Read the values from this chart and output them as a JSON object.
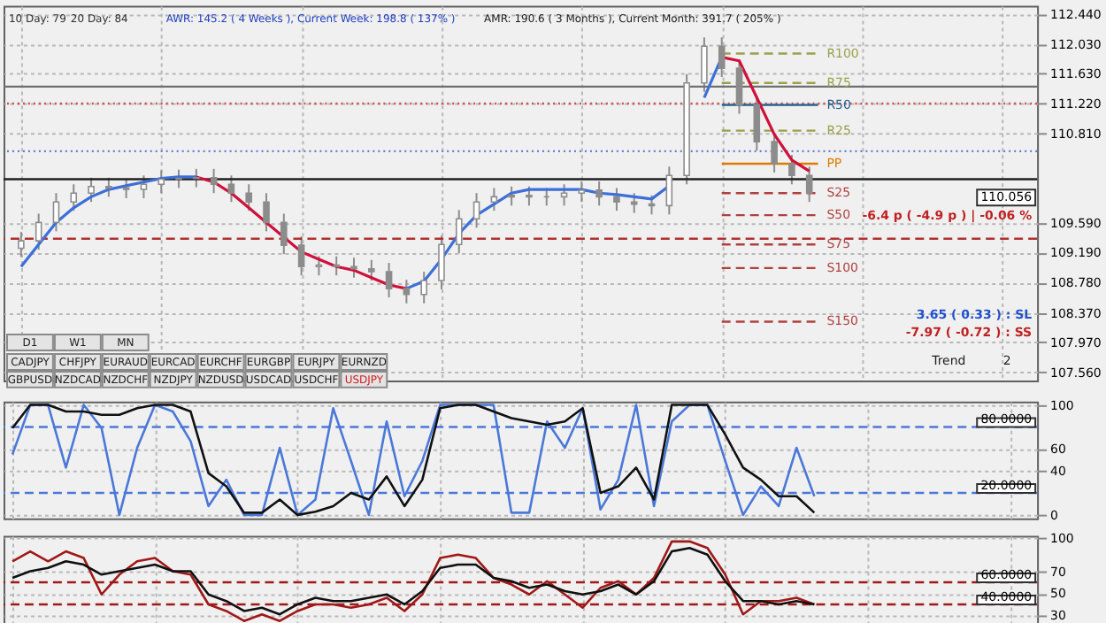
{
  "chart_data": [
    {
      "type": "candlestick",
      "color": "#8c8c8c",
      "categories": [
        null,
        null,
        null,
        null,
        null,
        null,
        null,
        null,
        null,
        null,
        null,
        null,
        null,
        null,
        null,
        null,
        null,
        null,
        null,
        null,
        null,
        null,
        null,
        null,
        null,
        null,
        null,
        null,
        null,
        null,
        null,
        null,
        null,
        null,
        null,
        null,
        null,
        null,
        null,
        null,
        null,
        null,
        null,
        null,
        null,
        null,
        null,
        null,
        null,
        null,
        null,
        null,
        null,
        null,
        null,
        null,
        null,
        null
      ],
      "ohlc": [
        [
          109.25,
          109.47,
          109.13,
          109.35
        ],
        [
          109.35,
          109.72,
          109.23,
          109.6
        ],
        [
          109.6,
          110.0,
          109.48,
          109.88
        ],
        [
          109.88,
          110.12,
          109.76,
          110.0
        ],
        [
          110.0,
          110.21,
          109.88,
          110.09
        ],
        [
          110.09,
          110.21,
          109.95,
          110.07
        ],
        [
          110.07,
          110.19,
          109.93,
          110.05
        ],
        [
          110.05,
          110.24,
          109.93,
          110.12
        ],
        [
          110.12,
          110.31,
          110.0,
          110.19
        ],
        [
          110.19,
          110.32,
          110.07,
          110.2
        ],
        [
          110.2,
          110.33,
          110.08,
          110.21
        ],
        [
          110.21,
          110.33,
          110.0,
          110.12
        ],
        [
          110.12,
          110.24,
          109.88,
          110.0
        ],
        [
          110.0,
          110.12,
          109.76,
          109.88
        ],
        [
          109.88,
          110.0,
          109.48,
          109.6
        ],
        [
          109.6,
          109.72,
          109.17,
          109.29
        ],
        [
          109.29,
          109.41,
          108.88,
          109.0
        ],
        [
          109.0,
          109.14,
          108.88,
          109.02
        ],
        [
          109.02,
          109.14,
          108.88,
          109.0
        ],
        [
          109.0,
          109.12,
          108.85,
          108.97
        ],
        [
          108.97,
          109.09,
          108.81,
          108.93
        ],
        [
          108.93,
          109.05,
          108.58,
          108.7
        ],
        [
          108.7,
          108.82,
          108.5,
          108.62
        ],
        [
          108.62,
          108.93,
          108.5,
          108.81
        ],
        [
          108.81,
          109.42,
          108.69,
          109.3
        ],
        [
          109.3,
          109.77,
          109.18,
          109.65
        ],
        [
          109.65,
          110.0,
          109.53,
          109.88
        ],
        [
          109.88,
          110.07,
          109.76,
          109.95
        ],
        [
          109.95,
          110.09,
          109.83,
          109.97
        ],
        [
          109.97,
          110.09,
          109.83,
          109.95
        ],
        [
          109.95,
          110.07,
          109.83,
          109.95
        ],
        [
          109.95,
          110.12,
          109.83,
          110.0
        ],
        [
          110.0,
          110.16,
          109.88,
          110.04
        ],
        [
          110.04,
          110.16,
          109.83,
          109.95
        ],
        [
          109.95,
          110.07,
          109.76,
          109.88
        ],
        [
          109.88,
          110.0,
          109.73,
          109.85
        ],
        [
          109.85,
          109.97,
          109.71,
          109.83
        ],
        [
          109.83,
          110.36,
          109.71,
          110.24
        ],
        [
          110.24,
          111.62,
          110.12,
          111.5
        ],
        [
          111.5,
          112.12,
          111.38,
          112.0
        ],
        [
          112.0,
          112.12,
          111.58,
          111.7
        ],
        [
          111.7,
          111.82,
          111.08,
          111.2
        ],
        [
          111.2,
          111.32,
          110.58,
          110.7
        ],
        [
          110.7,
          110.82,
          110.28,
          110.4
        ],
        [
          110.4,
          110.52,
          110.12,
          110.24
        ],
        [
          110.24,
          110.36,
          109.88,
          110.0
        ],
        null,
        null,
        null,
        null,
        null,
        null,
        null,
        null,
        null,
        null,
        null,
        null
      ],
      "series": [
        {
          "type": "line",
          "color": "#3c6fd8",
          "values": [
            109.0,
            109.3,
            109.6,
            109.8,
            109.95,
            110.05,
            110.1,
            110.15,
            110.2,
            110.22,
            110.22,
            null,
            null,
            null,
            null,
            null,
            null,
            null,
            null,
            null,
            null,
            null,
            108.7,
            108.8,
            109.1,
            109.45,
            109.7,
            109.85,
            110.0,
            110.05,
            110.05,
            110.05,
            110.05,
            110.0,
            109.98,
            109.95,
            109.92,
            110.1,
            null,
            111.3,
            111.85,
            null,
            null,
            null,
            null,
            null,
            null,
            null,
            null,
            null,
            null,
            null,
            null,
            null,
            null,
            null,
            null,
            null
          ]
        },
        {
          "type": "line",
          "color": "#d0103a",
          "values": [
            null,
            null,
            null,
            null,
            null,
            null,
            null,
            null,
            null,
            null,
            110.22,
            110.15,
            110.0,
            109.8,
            109.6,
            109.4,
            109.2,
            109.1,
            109.0,
            108.95,
            108.85,
            108.75,
            108.7,
            null,
            null,
            null,
            null,
            null,
            null,
            null,
            null,
            null,
            null,
            null,
            null,
            null,
            null,
            null,
            null,
            null,
            null,
            null,
            null,
            null,
            null,
            null,
            null,
            null,
            null,
            null,
            null,
            null,
            null,
            null,
            null,
            null,
            null,
            null
          ]
        },
        {
          "type": "line",
          "color": "#d0103a",
          "values": [
            null,
            null,
            null,
            null,
            null,
            null,
            null,
            null,
            null,
            null,
            null,
            null,
            null,
            null,
            null,
            null,
            null,
            null,
            null,
            null,
            null,
            null,
            null,
            null,
            null,
            null,
            null,
            null,
            null,
            null,
            null,
            null,
            null,
            null,
            null,
            null,
            null,
            null,
            null,
            null,
            111.85,
            111.8,
            111.3,
            110.8,
            110.45,
            110.3,
            null,
            null,
            null,
            null,
            null,
            null,
            null,
            null,
            null,
            null,
            null,
            null
          ]
        }
      ],
      "ylim": [
        107.45,
        112.55
      ],
      "yticks": [
        {
          "value": 112.44,
          "label": "112.440"
        },
        {
          "value": 112.03,
          "label": "112.030"
        },
        {
          "value": 111.63,
          "label": "111.630"
        },
        {
          "value": 111.22,
          "label": "111.220"
        },
        {
          "value": 110.81,
          "label": "110.810"
        },
        {
          "value": 109.59,
          "label": "109.590"
        },
        {
          "value": 109.19,
          "label": "109.190"
        },
        {
          "value": 108.78,
          "label": "108.780"
        },
        {
          "value": 108.37,
          "label": "108.370"
        },
        {
          "value": 107.97,
          "label": "107.970"
        },
        {
          "value": 107.56,
          "label": "107.560"
        }
      ],
      "grid": true,
      "tick_labels": "y",
      "ref_lines": [
        {
          "axis": "y",
          "value": 111.45,
          "color": "#707070",
          "line_style": "solid"
        },
        {
          "axis": "y",
          "value": 110.19,
          "color": "#202020",
          "line_style": "solid"
        },
        {
          "axis": "y",
          "value": 111.22,
          "color": "#d05050",
          "line_style": "dotted"
        },
        {
          "axis": "y",
          "value": 110.57,
          "color": "#6080d0",
          "line_style": "dotted"
        },
        {
          "axis": "y",
          "value": 109.38,
          "color": "#b03030",
          "line_style": "dashed"
        },
        {
          "axis": "y",
          "value": 111.9,
          "label": "R100",
          "color": "#9aa04a",
          "line_style": "dashed"
        },
        {
          "axis": "y",
          "value": 111.5,
          "label": "R75",
          "color": "#9aa04a",
          "line_style": "dashed"
        },
        {
          "axis": "y",
          "value": 111.2,
          "label": "R50",
          "color": "#1f5f8f",
          "line_style": "solid"
        },
        {
          "axis": "y",
          "value": 110.85,
          "label": "R25",
          "color": "#9aa04a",
          "line_style": "dashed"
        },
        {
          "axis": "y",
          "value": 110.4,
          "label": "PP",
          "color": "#e07b00",
          "line_style": "solid"
        },
        {
          "axis": "y",
          "value": 110.0,
          "label": "S25",
          "color": "#b04040",
          "line_style": "dashed"
        },
        {
          "axis": "y",
          "value": 109.7,
          "label": "S50",
          "color": "#b04040",
          "line_style": "dashed"
        },
        {
          "axis": "y",
          "value": 109.3,
          "label": "S75",
          "color": "#b04040",
          "line_style": "dashed"
        },
        {
          "axis": "y",
          "value": 108.98,
          "label": "S100",
          "color": "#b04040",
          "line_style": "dashed"
        },
        {
          "axis": "y",
          "value": 108.25,
          "label": "S150",
          "color": "#b04040",
          "line_style": "dashed"
        }
      ],
      "annotations": [
        "10 Day: 79",
        "20 Day: 84",
        "AWR: 145.2 ( 4 Weeks ), Current Week: 198.8 ( 137% )",
        "AMR: 190.6 ( 3 Months ), Current Month: 391.7 ( 205% )",
        "-6.4 p ( -4.9 p ) | -0.06 %",
        "3.65 ( 0.33 ) : SL",
        "-7.97 ( -0.72 ) : SS",
        "Trend",
        "2",
        "110.056",
        "D1",
        "W1",
        "MN",
        "CADJPY",
        "CHFJPY",
        "EURAUD",
        "EURCAD",
        "EURCHF",
        "EURGBP",
        "EURJPY",
        "EURNZD",
        "GBPUSD",
        "NZDCAD",
        "NZDCHF",
        "NZDJPY",
        "NZDUSD",
        "USDCAD",
        "USDCHF",
        "USDJPY"
      ]
    },
    {
      "type": "line",
      "categories": [
        null,
        null,
        null,
        null,
        null,
        null,
        null,
        null,
        null,
        null,
        null,
        null,
        null,
        null,
        null,
        null,
        null,
        null,
        null,
        null,
        null,
        null,
        null,
        null,
        null,
        null,
        null,
        null,
        null,
        null,
        null,
        null,
        null,
        null,
        null,
        null,
        null,
        null,
        null,
        null,
        null,
        null,
        null,
        null,
        null,
        null,
        null,
        null,
        null,
        null,
        null,
        null,
        null,
        null,
        null,
        null,
        null,
        null
      ],
      "series": [
        {
          "color": "#4a78d8",
          "values": [
            55,
            100,
            100,
            43,
            100,
            79,
            0,
            61,
            100,
            94,
            67,
            8,
            32,
            0,
            0,
            61,
            0,
            14,
            97,
            49,
            0,
            85,
            17,
            49,
            100,
            100,
            100,
            100,
            2,
            2,
            85,
            61,
            97,
            5,
            32,
            100,
            8,
            85,
            100,
            100,
            49,
            0,
            26,
            8,
            61,
            17,
            null,
            null,
            null,
            null,
            null,
            null,
            null,
            null,
            null,
            null,
            null,
            null
          ]
        },
        {
          "color": "#101010",
          "values": [
            79,
            100,
            100,
            94,
            94,
            91,
            91,
            97,
            100,
            100,
            94,
            38,
            26,
            2,
            2,
            14,
            0,
            3,
            8,
            20,
            14,
            35,
            8,
            32,
            97,
            100,
            100,
            94,
            88,
            85,
            82,
            85,
            97,
            20,
            26,
            43,
            14,
            100,
            100,
            100,
            73,
            43,
            32,
            17,
            17,
            2,
            null,
            null,
            null,
            null,
            null,
            null,
            null,
            null,
            null,
            null,
            null,
            null
          ]
        }
      ],
      "ylim": [
        -3,
        103
      ],
      "yticks": [
        0,
        40,
        60,
        100
      ],
      "grid": true,
      "tick_labels": "y",
      "ref_lines": [
        {
          "axis": "y",
          "value": 80,
          "label": "80.0000",
          "color": "#4a78d8",
          "line_style": "dashed"
        },
        {
          "axis": "y",
          "value": 20,
          "label": "20.0000",
          "color": "#4a78d8",
          "line_style": "dashed"
        }
      ]
    },
    {
      "type": "line",
      "categories": [
        null,
        null,
        null,
        null,
        null,
        null,
        null,
        null,
        null,
        null,
        null,
        null,
        null,
        null,
        null,
        null,
        null,
        null,
        null,
        null,
        null,
        null,
        null,
        null,
        null,
        null,
        null,
        null,
        null,
        null,
        null,
        null,
        null,
        null,
        null,
        null,
        null,
        null,
        null,
        null,
        null,
        null,
        null,
        null,
        null,
        null,
        null,
        null,
        null,
        null,
        null,
        null,
        null,
        null,
        null,
        null,
        null,
        null
      ],
      "series": [
        {
          "color": "#a01818",
          "values": [
            79,
            88,
            79,
            88,
            82,
            49,
            67,
            79,
            82,
            70,
            67,
            40,
            34,
            25,
            31,
            25,
            34,
            40,
            40,
            37,
            40,
            46,
            34,
            49,
            82,
            85,
            82,
            64,
            58,
            49,
            61,
            49,
            37,
            55,
            61,
            49,
            64,
            97,
            97,
            91,
            67,
            31,
            43,
            43,
            46,
            40,
            null,
            null,
            null,
            null,
            null,
            null,
            null,
            null,
            null,
            null,
            null,
            null
          ]
        },
        {
          "color": "#101010",
          "values": [
            64,
            70,
            73,
            79,
            76,
            67,
            70,
            73,
            76,
            70,
            70,
            49,
            43,
            34,
            37,
            31,
            40,
            46,
            43,
            43,
            46,
            49,
            40,
            52,
            73,
            76,
            76,
            64,
            61,
            55,
            58,
            52,
            49,
            52,
            58,
            49,
            61,
            88,
            91,
            85,
            61,
            43,
            43,
            40,
            43,
            40,
            null,
            null,
            null,
            null,
            null,
            null,
            null,
            null,
            null,
            null,
            null,
            null
          ]
        }
      ],
      "ylim": [
        22,
        102
      ],
      "yticks": [
        30,
        50,
        70,
        100
      ],
      "grid": true,
      "tick_labels": "y",
      "ref_lines": [
        {
          "axis": "y",
          "value": 60,
          "label": "60.0000",
          "color": "#a01818",
          "line_style": "dashed"
        },
        {
          "axis": "y",
          "value": 40,
          "label": "40.0000",
          "color": "#a01818",
          "line_style": "dashed"
        }
      ]
    }
  ]
}
